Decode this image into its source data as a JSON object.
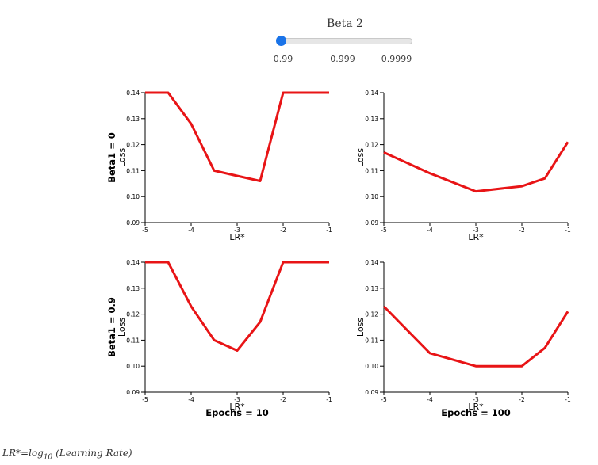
{
  "slider": {
    "title": "Beta 2",
    "options": [
      "0.99",
      "0.999",
      "0.9999"
    ],
    "selected": "0.99",
    "accent": "#1a73e8"
  },
  "footnote": {
    "lhs": "LR*=log",
    "sub": "10",
    "rhs": " (Learning Rate)"
  },
  "chart_data": {
    "type": "line",
    "line_color": "#e81416",
    "row_labels": [
      "Beta1 = 0",
      "Beta1 = 0.9"
    ],
    "col_labels": [
      "Epochs = 10",
      "Epochs = 100"
    ],
    "xlabel": "LR*",
    "ylabel": "Loss",
    "xlim": [
      -5,
      -1
    ],
    "ylim": [
      0.09,
      0.14
    ],
    "xticks": [
      "-5",
      "-4",
      "-3",
      "-2",
      "-1"
    ],
    "yticks": [
      "0.09",
      "0.10",
      "0.11",
      "0.12",
      "0.13",
      "0.14"
    ],
    "grid": false,
    "panels": [
      {
        "row": 0,
        "col": 0,
        "x": [
          -5,
          -4.5,
          -4,
          -3.5,
          -3,
          -2.5,
          -2,
          -1.5,
          -1
        ],
        "y": [
          0.14,
          0.14,
          0.128,
          0.11,
          0.108,
          0.106,
          0.14,
          0.14,
          0.14
        ]
      },
      {
        "row": 0,
        "col": 1,
        "x": [
          -5,
          -4,
          -3,
          -2,
          -1.5,
          -1
        ],
        "y": [
          0.117,
          0.109,
          0.102,
          0.104,
          0.107,
          0.121
        ]
      },
      {
        "row": 1,
        "col": 0,
        "x": [
          -5,
          -4.5,
          -4,
          -3.5,
          -3,
          -2.5,
          -2,
          -1.5,
          -1
        ],
        "y": [
          0.14,
          0.14,
          0.123,
          0.11,
          0.106,
          0.117,
          0.14,
          0.14,
          0.14
        ]
      },
      {
        "row": 1,
        "col": 1,
        "x": [
          -5,
          -4,
          -3,
          -2,
          -1.5,
          -1
        ],
        "y": [
          0.123,
          0.105,
          0.1,
          0.1,
          0.107,
          0.121
        ]
      }
    ]
  }
}
